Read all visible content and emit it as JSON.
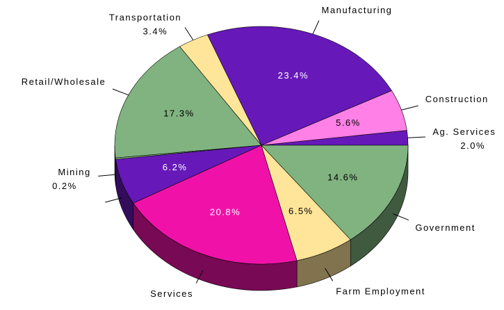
{
  "chart_data": {
    "type": "pie",
    "categories": [
      "Ag. Services",
      "Construction",
      "Manufacturing",
      "Transportation",
      "Retail/Wholesale",
      "Mining",
      null,
      "Services",
      "Farm Employment",
      "Government"
    ],
    "values": [
      2.0,
      5.6,
      23.4,
      3.4,
      17.3,
      0.2,
      6.2,
      20.8,
      6.5,
      14.6
    ],
    "value_labels": [
      "2.0%",
      "5.6%",
      "23.4%",
      "3.4%",
      "17.3%",
      "0.2%",
      "6.2%",
      "20.8%",
      "6.5%",
      "14.6%"
    ],
    "colors": [
      "#6619b8",
      "#ff80e6",
      "#6619b8",
      "#ffe599",
      "#80b380",
      "#80b380",
      "#6619b8",
      "#f012a8",
      "#ffe599",
      "#80b380"
    ],
    "start_angle": 0,
    "direction": "counterclockwise"
  }
}
